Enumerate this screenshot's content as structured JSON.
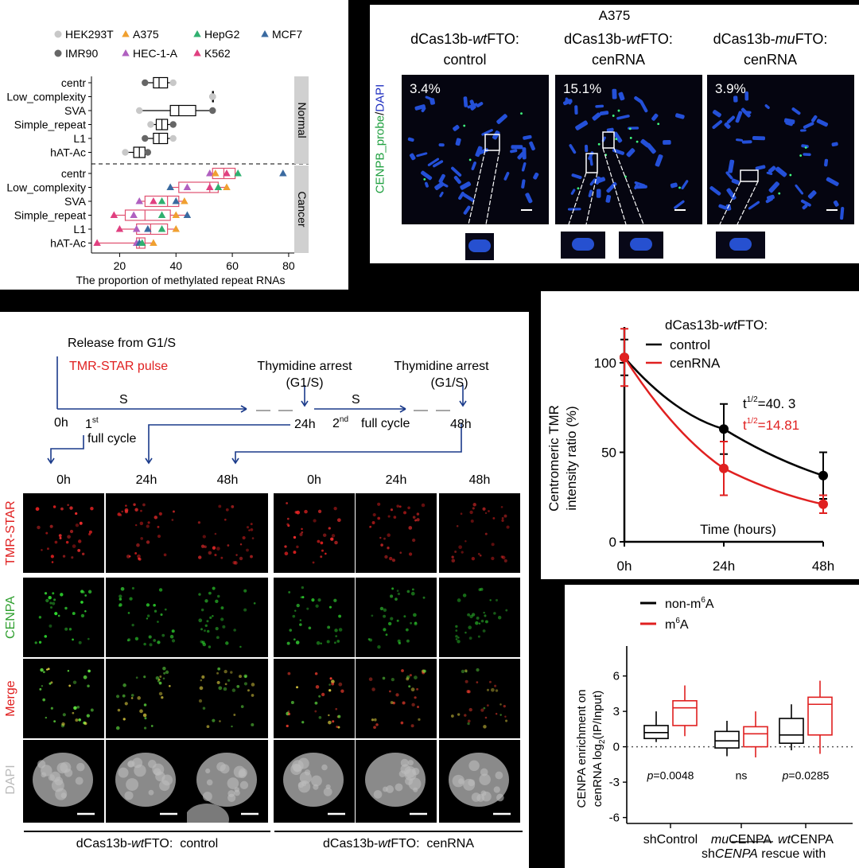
{
  "panelA": {
    "xlabel": "The proportion of methylated repeat RNAs",
    "xticks": [
      "20",
      "40",
      "60",
      "80"
    ],
    "xlim": [
      10,
      82
    ],
    "categories": [
      "centr",
      "Low_complexity",
      "SVA",
      "Simple_repeat",
      "L1",
      "hAT-Ac"
    ],
    "strips": [
      "Normal",
      "Cancer"
    ],
    "legend": [
      {
        "label": "HEK293T",
        "color": "#c8c8c8",
        "shape": "circle"
      },
      {
        "label": "A375",
        "color": "#f0a030",
        "shape": "triangle"
      },
      {
        "label": "HepG2",
        "color": "#30b070",
        "shape": "triangle"
      },
      {
        "label": "MCF7",
        "color": "#3a6aa0",
        "shape": "triangle"
      },
      {
        "label": "IMR90",
        "color": "#666666",
        "shape": "circle"
      },
      {
        "label": "HEC-1-A",
        "color": "#b060c0",
        "shape": "triangle"
      },
      {
        "label": "K562",
        "color": "#e04080",
        "shape": "triangle"
      }
    ],
    "normal_boxes": [
      {
        "q1": 32,
        "med": 34,
        "q3": 37,
        "lo": 29,
        "hi": 39
      },
      {
        "q1": 53,
        "med": 53,
        "q3": 53,
        "lo": 53,
        "hi": 53
      },
      {
        "q1": 38,
        "med": 41,
        "q3": 47,
        "lo": 27,
        "hi": 53
      },
      {
        "q1": 33,
        "med": 35,
        "q3": 37,
        "lo": 31,
        "hi": 39
      },
      {
        "q1": 32,
        "med": 34,
        "q3": 37,
        "lo": 29,
        "hi": 39
      },
      {
        "q1": 25,
        "med": 27,
        "q3": 29,
        "lo": 22,
        "hi": 30
      }
    ],
    "normal_points": [
      [
        [
          29,
          "IMR90"
        ],
        [
          39,
          "HEK293T"
        ]
      ],
      [
        [
          53,
          "IMR90"
        ],
        [
          53,
          "HEK293T"
        ]
      ],
      [
        [
          27,
          "HEK293T"
        ],
        [
          53,
          "IMR90"
        ]
      ],
      [
        [
          31,
          "HEK293T"
        ],
        [
          39,
          "IMR90"
        ]
      ],
      [
        [
          29,
          "IMR90"
        ],
        [
          39,
          "HEK293T"
        ]
      ],
      [
        [
          22,
          "HEK293T"
        ],
        [
          30,
          "IMR90"
        ]
      ]
    ],
    "cancer_boxes": [
      {
        "q1": 53,
        "med": 57,
        "q3": 61,
        "lo": 52,
        "hi": 62
      },
      {
        "q1": 41,
        "med": 52,
        "q3": 55,
        "lo": 38,
        "hi": 58
      },
      {
        "q1": 29,
        "med": 37,
        "q3": 41,
        "lo": 27,
        "hi": 43
      },
      {
        "q1": 22,
        "med": 29,
        "q3": 38,
        "lo": 18,
        "hi": 44
      },
      {
        "q1": 26,
        "med": 31,
        "q3": 37,
        "lo": 20,
        "hi": 40
      },
      {
        "q1": 26,
        "med": 27,
        "q3": 29,
        "lo": 12,
        "hi": 32
      }
    ],
    "cancer_points": [
      [
        [
          52,
          "HEC-1-A"
        ],
        [
          54,
          "A375"
        ],
        [
          58,
          "K562"
        ],
        [
          62,
          "HepG2"
        ],
        [
          78,
          "MCF7"
        ]
      ],
      [
        [
          38,
          "MCF7"
        ],
        [
          44,
          "HEC-1-A"
        ],
        [
          52,
          "K562"
        ],
        [
          55,
          "HepG2"
        ],
        [
          58,
          "A375"
        ]
      ],
      [
        [
          27,
          "HEC-1-A"
        ],
        [
          32,
          "K562"
        ],
        [
          35,
          "HepG2"
        ],
        [
          40,
          "MCF7"
        ],
        [
          43,
          "A375"
        ]
      ],
      [
        [
          18,
          "K562"
        ],
        [
          25,
          "HEC-1-A"
        ],
        [
          35,
          "HepG2"
        ],
        [
          40,
          "A375"
        ],
        [
          44,
          "MCF7"
        ]
      ],
      [
        [
          20,
          "K562"
        ],
        [
          26,
          "HEC-1-A"
        ],
        [
          30,
          "MCF7"
        ],
        [
          35,
          "HepG2"
        ],
        [
          40,
          "A375"
        ]
      ],
      [
        [
          12,
          "K562"
        ],
        [
          26,
          "HEC-1-A"
        ],
        [
          27,
          "MCF7"
        ],
        [
          28,
          "HepG2"
        ],
        [
          32,
          "A375"
        ]
      ]
    ]
  },
  "panelB": {
    "title": "A375",
    "ylabel_green": "CENPB_probe",
    "ylabel_slash": "/",
    "ylabel_blue": "DAPI",
    "columns": [
      {
        "line1a": "dCas13b-",
        "line1b": "wt",
        "line1c": "FTO:",
        "line2": "control",
        "pct": "3.4%"
      },
      {
        "line1a": "dCas13b-",
        "line1b": "wt",
        "line1c": "FTO:",
        "line2": "cenRNA",
        "pct": "15.1%"
      },
      {
        "line1a": "dCas13b-",
        "line1b": "mu",
        "line1c": "FTO:",
        "line2": "cenRNA",
        "pct": "3.9%"
      }
    ]
  },
  "panelC": {
    "release": "Release from G1/S",
    "pulse": "TMR-STAR pulse",
    "arrest1": "Thymidine arrest",
    "arrest1b": "(G1/S)",
    "arrest2": "Thymidine arrest",
    "arrest2b": "(G1/S)",
    "s1": "S",
    "s2": "S",
    "t0": "0h",
    "t24": "24h",
    "t48": "48h",
    "cycle1_num": "1",
    "cycle1_sup": "st",
    "cycle1_text": "full cycle",
    "cycle2_num": "2",
    "cycle2_sup": "nd",
    "cycle2_text": "full cycle",
    "col_times": [
      "0h",
      "24h",
      "48h",
      "0h",
      "24h",
      "48h"
    ],
    "row_labels": [
      "TMR-STAR",
      "CENPA",
      "Merge",
      "DAPI"
    ],
    "group1": {
      "a": "dCas13b-",
      "b": "wt",
      "c": "FTO:  control"
    },
    "group2": {
      "a": "dCas13b-",
      "b": "wt",
      "c": "FTO:  cenRNA"
    }
  },
  "panelD": {
    "legend_title_a": "dCas13b-",
    "legend_title_b": "wt",
    "legend_title_c": "FTO:",
    "series_labels": [
      "control",
      "cenRNA"
    ],
    "ylabel1": "Centromeric TMR",
    "ylabel2": "intensity ratio (%)",
    "xlabel": "Time (hours)",
    "yticks": [
      "0",
      "50",
      "100"
    ],
    "xticks": [
      "0h",
      "24h",
      "48h"
    ],
    "t_control_pre": "t",
    "t_control_sup": "1/2",
    "t_control_val": "=40. 3",
    "t_cen_pre": "t",
    "t_cen_sup": "1/2",
    "t_cen_val": "=14.81"
  },
  "panelE": {
    "legend1": "non-m",
    "legend1_sup": "6",
    "legend1_tail": "A",
    "legend2": "m",
    "legend2_sup": "6",
    "legend2_tail": "A",
    "ylabel1": "CENPA enrichment on",
    "ylabel2_a": "cenRNA  log",
    "ylabel2_sub": "2",
    "ylabel2_b": "(IP/Input)",
    "yticks": [
      "6",
      "3",
      "0",
      "-3",
      "-6"
    ],
    "pvals": [
      {
        "a": "p",
        "b": "=0.0048"
      },
      {
        "a": "",
        "b": "ns"
      },
      {
        "a": "p",
        "b": "=0.0285"
      }
    ],
    "groups": [
      {
        "a": "",
        "b": "shControl"
      },
      {
        "a": "mu",
        "b": "CENPA"
      },
      {
        "a": "wt",
        "b": "CENPA"
      }
    ],
    "bottom_a": "sh",
    "bottom_b": "CENPA",
    "bottom_c": " rescue with"
  },
  "chart_data": [
    {
      "type": "box",
      "title": "",
      "xlabel": "The proportion of methylated repeat RNAs",
      "categories": [
        "centr",
        "Low_complexity",
        "SVA",
        "Simple_repeat",
        "L1",
        "hAT-Ac"
      ],
      "facets": [
        "Normal",
        "Cancer"
      ],
      "xlim": [
        10,
        82
      ]
    },
    {
      "type": "line",
      "xlabel": "Time (hours)",
      "ylabel": "Centromeric TMR intensity ratio (%)",
      "x": [
        0,
        24,
        48
      ],
      "ylim": [
        0,
        120
      ],
      "series": [
        {
          "name": "control",
          "color": "#000000",
          "values": [
            103,
            63,
            37
          ],
          "err": [
            10,
            14,
            13
          ],
          "halflife": "40.3"
        },
        {
          "name": "cenRNA",
          "color": "#e02020",
          "values": [
            103,
            41,
            21
          ],
          "err": [
            16,
            15,
            5
          ],
          "halflife": "14.81"
        }
      ]
    },
    {
      "type": "box",
      "ylabel": "CENPA enrichment on cenRNA log2(IP/Input)",
      "ylim": [
        -6.5,
        8
      ],
      "categories": [
        "shControl",
        "muCENPA",
        "wtCENPA"
      ],
      "series": [
        {
          "name": "non-m6A",
          "color": "#000000",
          "boxes": [
            {
              "lo": 0.4,
              "q1": 0.7,
              "med": 1.2,
              "q3": 1.8,
              "hi": 3.0
            },
            {
              "lo": -0.8,
              "q1": -0.1,
              "med": 0.5,
              "q3": 1.3,
              "hi": 2.2
            },
            {
              "lo": -0.3,
              "q1": 0.3,
              "med": 1.0,
              "q3": 2.4,
              "hi": 3.6
            }
          ]
        },
        {
          "name": "m6A",
          "color": "#e02020",
          "boxes": [
            {
              "lo": 0.9,
              "q1": 1.8,
              "med": 3.3,
              "q3": 3.9,
              "hi": 5.2
            },
            {
              "lo": -0.9,
              "q1": 0.0,
              "med": 1.1,
              "q3": 1.7,
              "hi": 3.0
            },
            {
              "lo": -0.6,
              "q1": 1.0,
              "med": 3.6,
              "q3": 4.2,
              "hi": 5.6
            }
          ]
        }
      ],
      "pvalues": [
        "p=0.0048",
        "ns",
        "p=0.0285"
      ]
    }
  ]
}
